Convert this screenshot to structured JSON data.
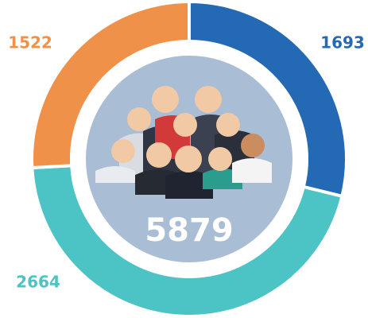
{
  "chart_data": {
    "type": "donut",
    "values": [
      1693,
      2664,
      1522
    ],
    "colors": [
      "#2469b3",
      "#4cc3c4",
      "#f0914a"
    ],
    "total": 5879
  }
}
